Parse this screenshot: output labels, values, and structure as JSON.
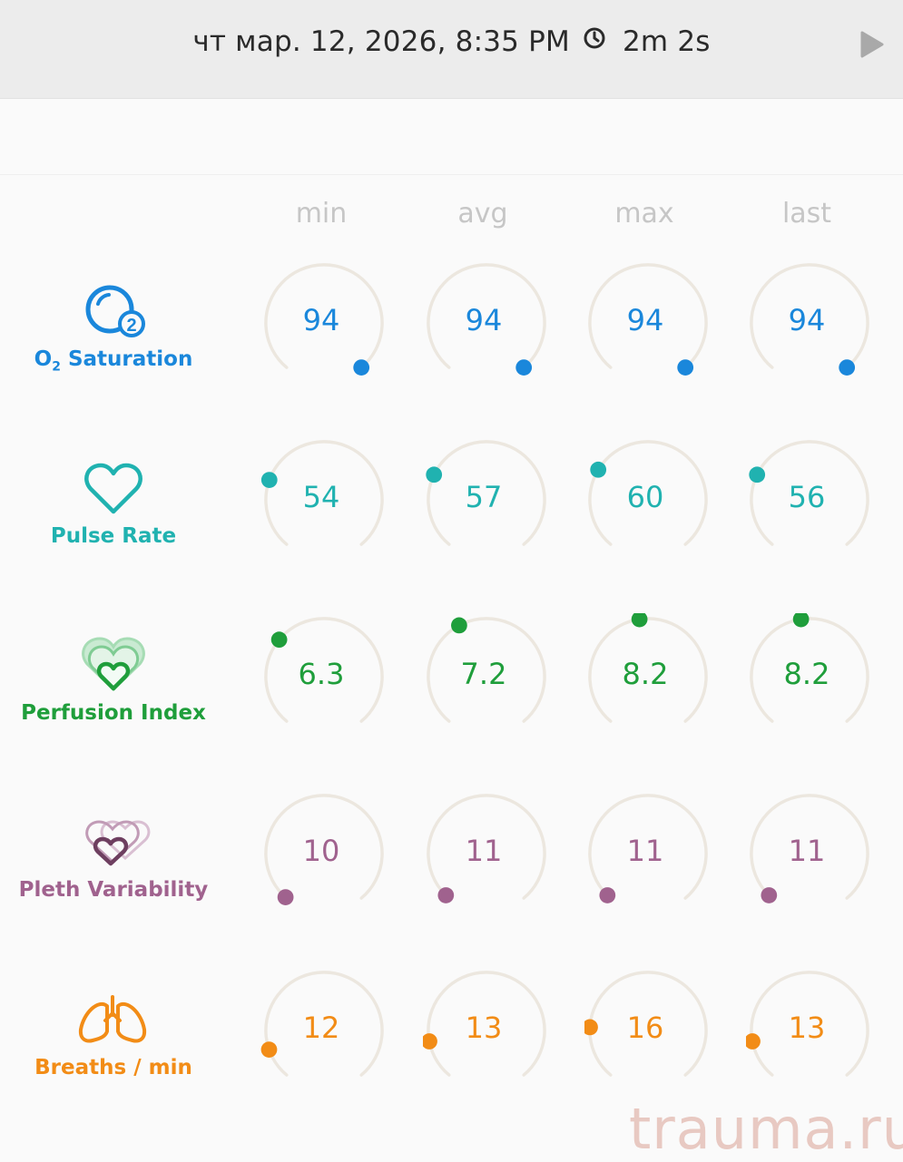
{
  "header": {
    "datetime": "чт мар. 12, 2026, 8:35 PM",
    "duration": "2m 2s",
    "clock_icon": "clock-icon",
    "play_icon": "play-icon"
  },
  "columns": [
    "min",
    "avg",
    "max",
    "last"
  ],
  "metrics": [
    {
      "key": "o2",
      "label_main": "O",
      "label_sub": "2",
      "label_rest": " Saturation",
      "color": "#1a87db",
      "icon": "o2-icon",
      "values": [
        "94",
        "94",
        "94",
        "94"
      ],
      "levels": [
        1.0,
        1.0,
        1.0,
        1.0
      ]
    },
    {
      "key": "pulse",
      "label": "Pulse Rate",
      "color": "#20b2b0",
      "icon": "heart-icon",
      "values": [
        "54",
        "57",
        "60",
        "56"
      ],
      "levels": [
        0.25,
        0.27,
        0.29,
        0.27
      ]
    },
    {
      "key": "pi",
      "label": "Perfusion Index",
      "color": "#1f9e3b",
      "icon": "perfusion-hearts-icon",
      "values": [
        "6.3",
        "7.2",
        "8.2",
        "8.2"
      ],
      "levels": [
        0.32,
        0.4,
        0.47,
        0.47
      ]
    },
    {
      "key": "pvi",
      "label": "Pleth Variability",
      "color": "#a0628e",
      "icon": "pleth-hearts-icon",
      "values": [
        "10",
        "11",
        "11",
        "11"
      ],
      "levels": [
        0.005,
        0.015,
        0.015,
        0.015
      ]
    },
    {
      "key": "resp",
      "label": "Breaths / min",
      "color": "#f28c16",
      "icon": "lungs-icon",
      "values": [
        "12",
        "13",
        "16",
        "13"
      ],
      "levels": [
        0.11,
        0.14,
        0.19,
        0.14
      ]
    }
  ],
  "watermark": "trauma.ru"
}
